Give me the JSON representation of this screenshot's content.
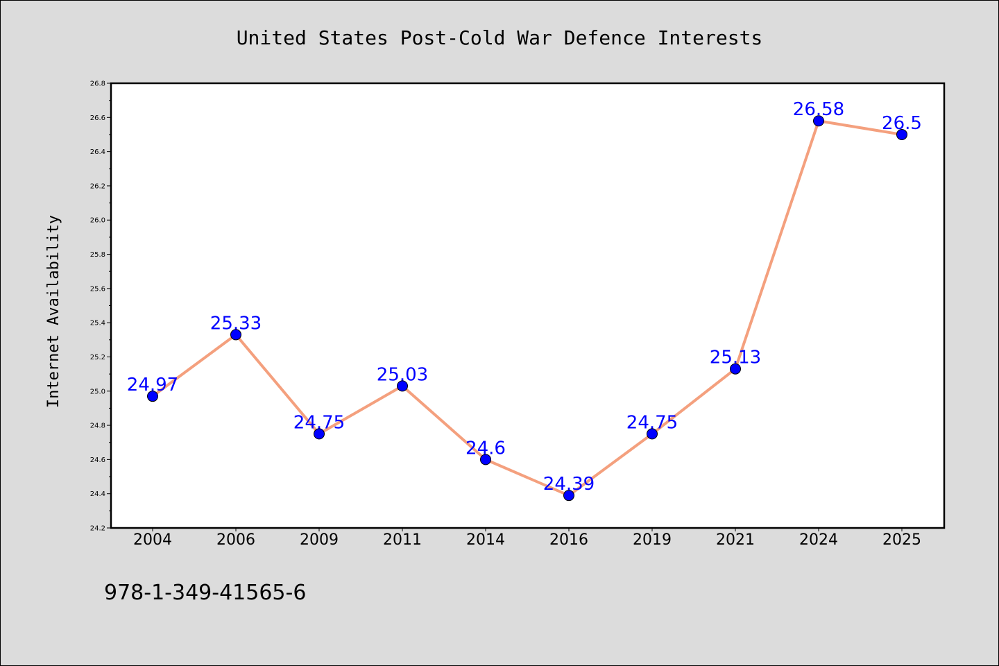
{
  "chart_data": {
    "type": "line",
    "title": "United States Post-Cold War Defence Interests",
    "xlabel": "",
    "ylabel": "Internet Availability",
    "categories": [
      "2004",
      "2006",
      "2009",
      "2011",
      "2014",
      "2016",
      "2019",
      "2021",
      "2024",
      "2025"
    ],
    "values": [
      24.97,
      25.33,
      24.75,
      25.03,
      24.6,
      24.39,
      24.75,
      25.13,
      26.58,
      26.5
    ],
    "data_labels": [
      "24.97",
      "25.33",
      "24.75",
      "25.03",
      "24.6",
      "24.39",
      "24.75",
      "25.13",
      "26.58",
      "26.5"
    ],
    "ylim": [
      24.2,
      26.8
    ],
    "yticks": [
      "24.2",
      "24.4",
      "24.6",
      "24.8",
      "25.0",
      "25.2",
      "25.4",
      "25.6",
      "25.8",
      "26.0",
      "26.2",
      "26.4",
      "26.6",
      "26.8"
    ],
    "grid": false,
    "legend": "none",
    "colors": {
      "line": "#f4a07e",
      "marker": "#0000ff",
      "label": "#0000ff",
      "plot_bg": "#ffffff",
      "page_bg": "#dcdcdc"
    }
  },
  "footnote": "978-1-349-41565-6"
}
